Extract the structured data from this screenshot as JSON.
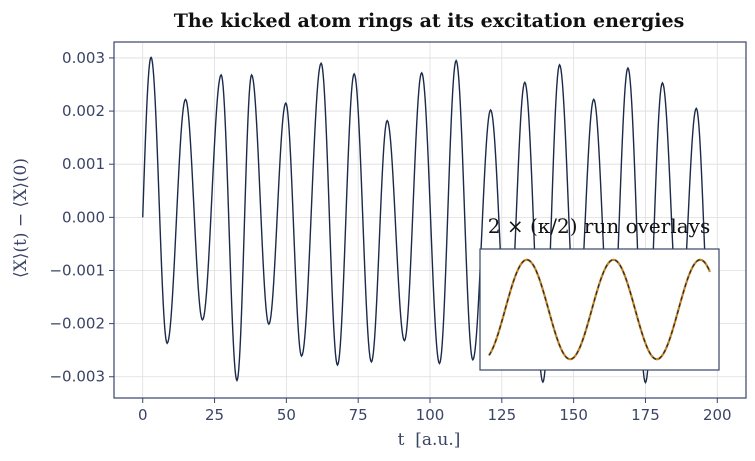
{
  "chart_data": {
    "type": "line",
    "title": "The kicked atom rings at its excitation energies",
    "xlabel": "t  [a.u.]",
    "ylabel": "⟨X⟩(t) − ⟨X⟩(0)",
    "xlim": [
      -10,
      210
    ],
    "ylim": [
      -0.0034,
      0.0033
    ],
    "xticks": [
      0,
      25,
      50,
      75,
      100,
      125,
      150,
      175,
      200
    ],
    "xtick_labels": [
      "0",
      "25",
      "50",
      "75",
      "100",
      "125",
      "150",
      "175",
      "200"
    ],
    "yticks": [
      -0.003,
      -0.002,
      -0.001,
      0,
      0.001,
      0.002,
      0.003
    ],
    "ytick_labels": [
      "−0.003",
      "−0.002",
      "−0.001",
      "0.000",
      "0.001",
      "0.002",
      "0.003"
    ],
    "grid": true,
    "series": [
      {
        "color": "#1b2a4a",
        "points": [
          [
            0,
            0
          ],
          [
            2.9,
            0.00301
          ],
          [
            8.5,
            -0.00237
          ],
          [
            14.9,
            0.00222
          ],
          [
            20.8,
            -0.00193
          ],
          [
            27.3,
            0.00268
          ],
          [
            32.8,
            -0.00307
          ],
          [
            37.9,
            0.00268
          ],
          [
            43.9,
            -0.00201
          ],
          [
            49.8,
            0.00215
          ],
          [
            55.3,
            -0.00261
          ],
          [
            62.1,
            0.0029
          ],
          [
            67.8,
            -0.00278
          ],
          [
            73.6,
            0.0027
          ],
          [
            79.6,
            -0.00272
          ],
          [
            85.1,
            0.00182
          ],
          [
            91.1,
            -0.00232
          ],
          [
            97.1,
            0.00272
          ],
          [
            103.3,
            -0.00275
          ],
          [
            109.1,
            0.00295
          ],
          [
            114.9,
            -0.00268
          ],
          [
            121.1,
            0.00202
          ],
          [
            127.1,
            -0.0024
          ],
          [
            133.0,
            0.00254
          ],
          [
            139.3,
            -0.0031
          ],
          [
            145.1,
            0.00287
          ],
          [
            151.1,
            -0.00228
          ],
          [
            157.0,
            0.00222
          ],
          [
            163.1,
            -0.00255
          ],
          [
            168.9,
            0.00281
          ],
          [
            175.0,
            -0.00311
          ],
          [
            180.9,
            0.00253
          ],
          [
            186.9,
            -0.00218
          ],
          [
            192.7,
            0.00205
          ],
          [
            198.0,
            -0.00258
          ]
        ]
      }
    ],
    "inset": {
      "title": "2 × (κ/2) run overlays",
      "x": [
        0,
        1
      ],
      "series": [
        {
          "color": "#c8871e",
          "style": "solid"
        },
        {
          "color": "#1b2a4a",
          "style": "dashed"
        }
      ]
    }
  }
}
